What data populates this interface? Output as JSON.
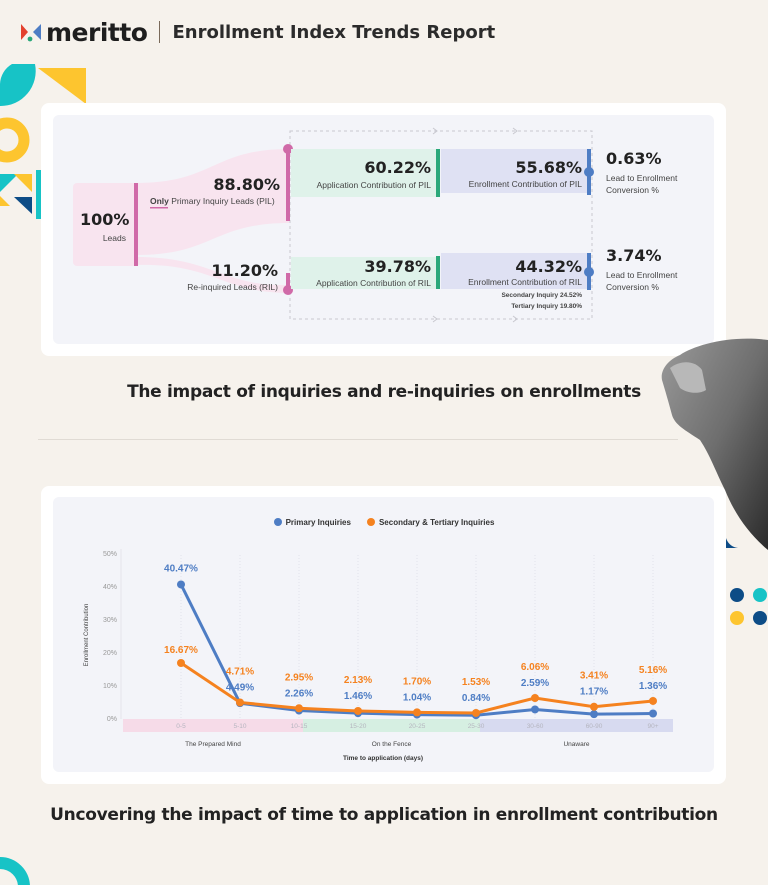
{
  "header": {
    "brand": "meritto",
    "title": "Enrollment Index Trends Report"
  },
  "colors": {
    "background": "#f6f2ec",
    "pink": "#d06aa8",
    "green": "#2aa87a",
    "blue": "#4e7dc4",
    "orange": "#f5821f",
    "teal": "#17c3c6",
    "yellow": "#fdc52f",
    "navy": "#0d4c86"
  },
  "flow": {
    "leads": {
      "value": "100%",
      "label": "Leads"
    },
    "pil": {
      "value": "88.80%",
      "label_prefix": "Only",
      "label": " Primary Inquiry Leads (PIL)"
    },
    "ril": {
      "value": "11.20%",
      "label": "Re-inquired Leads (RIL)"
    },
    "app_pil": {
      "value": "60.22%",
      "label": "Application Contribution of PIL"
    },
    "app_ril": {
      "value": "39.78%",
      "label": "Application Contribution of RIL"
    },
    "enr_pil": {
      "value": "55.68%",
      "label": "Enrollment Contribution of PIL"
    },
    "enr_ril": {
      "value": "44.32%",
      "label": "Enrollment Contribution of RIL"
    },
    "ril_breakdown": [
      "Secondary Inquiry 24.52%",
      "Tertiary Inquiry 19.80%"
    ],
    "conv_pil": {
      "value": "0.63%",
      "label1": "Lead to Enrollment",
      "label2": "Conversion %"
    },
    "conv_ril": {
      "value": "3.74%",
      "label1": "Lead to Enrollment",
      "label2": "Conversion %"
    }
  },
  "captions": {
    "first": "The impact of inquiries and re-inquiries on enrollments",
    "second": "Uncovering the impact of time to application in enrollment contribution"
  },
  "chart_data": {
    "type": "line",
    "title": "",
    "xlabel": "Time to application (days)",
    "ylabel": "Enrollment Contribution",
    "ylim": [
      0,
      50
    ],
    "yticks": [
      "0%",
      "10%",
      "20%",
      "30%",
      "40%",
      "50%"
    ],
    "categories": [
      "0-5",
      "5-10",
      "10-15",
      "15-20",
      "20-25",
      "25-30",
      "30-60",
      "60-90",
      "90+"
    ],
    "series": [
      {
        "name": "Primary Inquiries",
        "color": "#4e7dc4",
        "values": [
          40.47,
          4.49,
          2.26,
          1.46,
          1.04,
          0.84,
          2.59,
          1.17,
          1.36
        ],
        "labels": [
          "40.47%",
          "4.49%",
          "2.26%",
          "1.46%",
          "1.04%",
          "0.84%",
          "2.59%",
          "1.17%",
          "1.36%"
        ]
      },
      {
        "name": "Secondary & Tertiary Inquiries",
        "color": "#f5821f",
        "values": [
          16.67,
          4.71,
          2.95,
          2.13,
          1.7,
          1.53,
          6.06,
          3.41,
          5.16
        ],
        "labels": [
          "16.67%",
          "4.71%",
          "2.95%",
          "2.13%",
          "1.70%",
          "1.53%",
          "6.06%",
          "3.41%",
          "5.16%"
        ]
      }
    ],
    "groups": [
      {
        "name": "The Prepared Mind",
        "range": [
          "0-5",
          "10-15"
        ],
        "color": "#f6dbe8"
      },
      {
        "name": "On the Fence",
        "range": [
          "10-15",
          "25-30"
        ],
        "color": "#d6efe2"
      },
      {
        "name": "Unaware",
        "range": [
          "25-30",
          "90+"
        ],
        "color": "#d7daf0"
      }
    ],
    "legend_position": "top",
    "grid": "vertical dotted"
  }
}
